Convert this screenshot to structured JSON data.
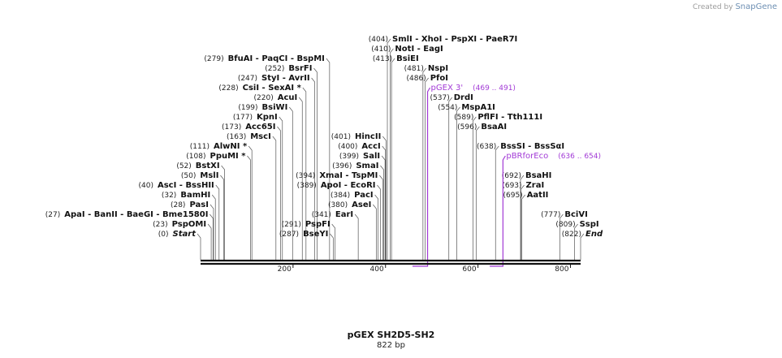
{
  "credit": {
    "prefix": "Created by",
    "brand": "SnapGene"
  },
  "map": {
    "name": "pGEX SH2D5-SH2",
    "length_text": "822 bp",
    "length_bp": 822,
    "ticks": [
      {
        "bp": 200,
        "label": "200"
      },
      {
        "bp": 400,
        "label": "400"
      },
      {
        "bp": 600,
        "label": "600"
      },
      {
        "bp": 800,
        "label": "800"
      }
    ],
    "colors": {
      "backbone": "#111111",
      "feature": "#a23ad6",
      "leader": "#555555"
    }
  },
  "sites": [
    {
      "pos": 279,
      "pos_label": "(279)",
      "names": [
        "BfuAI",
        "PaqCI",
        "BspMI"
      ],
      "row": 0
    },
    {
      "pos": 252,
      "pos_label": "(252)",
      "names": [
        "BsrFI"
      ],
      "row": 1
    },
    {
      "pos": 247,
      "pos_label": "(247)",
      "names": [
        "StyI",
        "AvrII"
      ],
      "row": 2
    },
    {
      "pos": 228,
      "pos_label": "(228)",
      "names": [
        "CsiI",
        "SexAI *"
      ],
      "row": 3
    },
    {
      "pos": 220,
      "pos_label": "(220)",
      "names": [
        "AcuI"
      ],
      "row": 4
    },
    {
      "pos": 199,
      "pos_label": "(199)",
      "names": [
        "BsiWI"
      ],
      "row": 5
    },
    {
      "pos": 177,
      "pos_label": "(177)",
      "names": [
        "KpnI"
      ],
      "row": 6
    },
    {
      "pos": 173,
      "pos_label": "(173)",
      "names": [
        "Acc65I"
      ],
      "row": 7
    },
    {
      "pos": 163,
      "pos_label": "(163)",
      "names": [
        "MscI"
      ],
      "row": 8
    },
    {
      "pos": 111,
      "pos_label": "(111)",
      "names": [
        "AlwNI *"
      ],
      "row": 9
    },
    {
      "pos": 108,
      "pos_label": "(108)",
      "names": [
        "PpuMI *"
      ],
      "row": 10
    },
    {
      "pos": 52,
      "pos_label": "(52)",
      "names": [
        "BstXI"
      ],
      "row": 11
    },
    {
      "pos": 50,
      "pos_label": "(50)",
      "names": [
        "MslI"
      ],
      "row": 12
    },
    {
      "pos": 40,
      "pos_label": "(40)",
      "names": [
        "AscI",
        "BssHII"
      ],
      "row": 13
    },
    {
      "pos": 32,
      "pos_label": "(32)",
      "names": [
        "BamHI"
      ],
      "row": 14
    },
    {
      "pos": 28,
      "pos_label": "(28)",
      "names": [
        "PasI"
      ],
      "row": 15
    },
    {
      "pos": 27,
      "pos_label": "(27)",
      "names": [
        "ApaI",
        "BanII",
        "BaeGI",
        "Bme1580I"
      ],
      "row": 16
    },
    {
      "pos": 23,
      "pos_label": "(23)",
      "names": [
        "PspOMI"
      ],
      "row": 17
    },
    {
      "pos": 0,
      "pos_label": "(0)",
      "names": [
        "Start"
      ],
      "row": 18,
      "italic": true
    },
    {
      "pos": 401,
      "pos_label": "(401)",
      "names": [
        "HincII"
      ],
      "row": 8
    },
    {
      "pos": 400,
      "pos_label": "(400)",
      "names": [
        "AccI"
      ],
      "row": 9
    },
    {
      "pos": 399,
      "pos_label": "(399)",
      "names": [
        "SalI"
      ],
      "row": 10
    },
    {
      "pos": 396,
      "pos_label": "(396)",
      "names": [
        "SmaI"
      ],
      "row": 11
    },
    {
      "pos": 394,
      "pos_label": "(394)",
      "names": [
        "XmaI",
        "TspMI"
      ],
      "row": 12
    },
    {
      "pos": 389,
      "pos_label": "(389)",
      "names": [
        "ApoI",
        "EcoRI"
      ],
      "row": 13
    },
    {
      "pos": 384,
      "pos_label": "(384)",
      "names": [
        "PacI"
      ],
      "row": 14
    },
    {
      "pos": 380,
      "pos_label": "(380)",
      "names": [
        "AseI"
      ],
      "row": 15
    },
    {
      "pos": 341,
      "pos_label": "(341)",
      "names": [
        "EarI"
      ],
      "row": 16
    },
    {
      "pos": 291,
      "pos_label": "(291)",
      "names": [
        "PspFI"
      ],
      "row": 17
    },
    {
      "pos": 287,
      "pos_label": "(287)",
      "names": [
        "BseYI"
      ],
      "row": 18
    },
    {
      "pos": 404,
      "pos_label": "(404)",
      "names": [
        "SmlI",
        "XhoI",
        "PspXI",
        "PaeR7I"
      ],
      "row": -2
    },
    {
      "pos": 410,
      "pos_label": "(410)",
      "names": [
        "NotI",
        "EagI"
      ],
      "row": -1
    },
    {
      "pos": 413,
      "pos_label": "(413)",
      "names": [
        "BsiEI"
      ],
      "row": 0
    },
    {
      "pos": 481,
      "pos_label": "(481)",
      "names": [
        "NspI"
      ],
      "row": 1
    },
    {
      "pos": 486,
      "pos_label": "(486)",
      "names": [
        "PfoI"
      ],
      "row": 2
    },
    {
      "pos": 537,
      "pos_label": "(537)",
      "names": [
        "DrdI"
      ],
      "row": 4
    },
    {
      "pos": 554,
      "pos_label": "(554)",
      "names": [
        "MspA1I"
      ],
      "row": 5
    },
    {
      "pos": 589,
      "pos_label": "(589)",
      "names": [
        "PflFI",
        "Tth111I"
      ],
      "row": 6
    },
    {
      "pos": 596,
      "pos_label": "(596)",
      "names": [
        "BsaAI"
      ],
      "row": 7
    },
    {
      "pos": 638,
      "pos_label": "(638)",
      "names": [
        "BssSI",
        "BssSαI"
      ],
      "row": 9
    },
    {
      "pos": 692,
      "pos_label": "(692)",
      "names": [
        "BsaHI"
      ],
      "row": 12
    },
    {
      "pos": 693,
      "pos_label": "(693)",
      "names": [
        "ZraI"
      ],
      "row": 13
    },
    {
      "pos": 695,
      "pos_label": "(695)",
      "names": [
        "AatII"
      ],
      "row": 14
    },
    {
      "pos": 777,
      "pos_label": "(777)",
      "names": [
        "BciVI"
      ],
      "row": 16
    },
    {
      "pos": 809,
      "pos_label": "(809)",
      "names": [
        "SspI"
      ],
      "row": 17
    },
    {
      "pos": 822,
      "pos_label": "(822)",
      "names": [
        "End"
      ],
      "row": 18,
      "italic": true
    }
  ],
  "features": [
    {
      "name": "pGEX 3'",
      "range": "(469 .. 491)",
      "start": 469,
      "end": 491,
      "row": 3
    },
    {
      "name": "pBRforEco",
      "range": "(636 .. 654)",
      "start": 636,
      "end": 654,
      "row": 10
    }
  ]
}
